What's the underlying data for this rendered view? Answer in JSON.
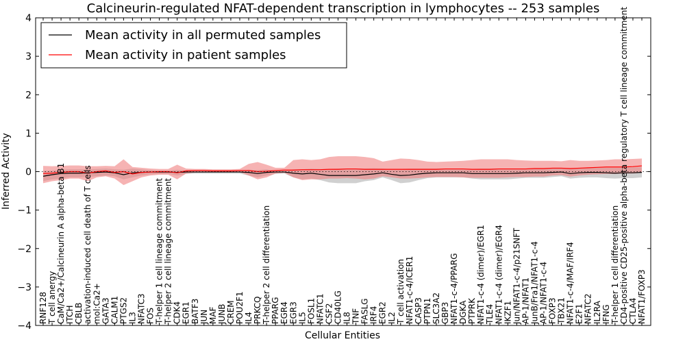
{
  "chart_data": {
    "type": "line",
    "title": "Calcineurin-regulated NFAT-dependent transcription in lymphocytes -- 253 samples",
    "xlabel": "Cellular Entities",
    "ylabel": "Inferred Activity",
    "ylim": [
      -4,
      4
    ],
    "yticks": [
      4,
      3,
      2,
      1,
      0,
      -1,
      -2,
      -3,
      -4
    ],
    "ytick_labels": [
      "4",
      "3",
      "2",
      "1",
      "0",
      "−1",
      "−2",
      "−3",
      "−4"
    ],
    "categories": [
      "RNF128",
      "T cell anergy",
      "CaM/Ca2+/Calcineurin A alpha-beta B1",
      "ITCH",
      "CBLB",
      "activation-induced cell death of T cells",
      "mol:Ca2+",
      "GATA3",
      "CALM1",
      "PTGS2",
      "IL3",
      "NFATC3",
      "FOS",
      "T-helper 1 cell lineage commitment",
      "T-helper 2 cell lineage commitment",
      "CDK4",
      "EGR1",
      "BATF3",
      "JUN",
      "MAF",
      "JUNB",
      "CREM",
      "POU2F1",
      "IL4",
      "PRKCQ",
      "T-helper 2 cell differentiation",
      "PPARG",
      "EGR4",
      "EGR3",
      "IL5",
      "FOSL1",
      "NFATC1",
      "CSF2",
      "CD40LG",
      "IL8",
      "TNF",
      "FASLG",
      "IRF4",
      "EGR2",
      "IL2",
      "T cell activation",
      "NFAT1-c-4/ICER1",
      "CASP3",
      "PTPN1",
      "SLC3A2",
      "GBP3",
      "NFAT1-c-4/PPARG",
      "DGKA",
      "PTPRK",
      "NFAT1-c-4 (dimer)/EGR1",
      "TLE4",
      "NFAT1-c-4 (dimer)/EGR4",
      "IKZF1",
      "Jun/NFAT1-c-4/p21SNFT",
      "AP-1/NFAT1",
      "JunB/Fra1/NFAT1-c-4",
      "AP-1/NFAT1-c-4",
      "FOXP3",
      "TBX21",
      "NFAT1-c-4/MAF/IRF4",
      "E2F1",
      "NFATC2",
      "IL2RA",
      "IFNG",
      "T-helper 1 cell differentiation",
      "CD4-positive CD25-positive alpha-beta regulatory T cell lineage commitment",
      "CTLA4",
      "NFAT1/FOXP3"
    ],
    "series": [
      {
        "name": "Mean activity in all permuted samples",
        "color": "#000000",
        "band_color": "#aaaaaa",
        "values": [
          -0.12,
          -0.08,
          -0.05,
          -0.04,
          -0.04,
          -0.03,
          -0.02,
          -0.01,
          -0.03,
          -0.08,
          -0.03,
          -0.02,
          -0.01,
          -0.01,
          -0.01,
          -0.02,
          -0.01,
          -0.01,
          -0.01,
          -0.01,
          -0.01,
          -0.01,
          -0.01,
          -0.02,
          -0.05,
          -0.02,
          -0.01,
          -0.01,
          -0.04,
          -0.06,
          -0.04,
          -0.07,
          -0.1,
          -0.1,
          -0.1,
          -0.1,
          -0.08,
          -0.06,
          -0.03,
          -0.07,
          -0.1,
          -0.09,
          -0.06,
          -0.04,
          -0.03,
          -0.03,
          -0.03,
          -0.03,
          -0.05,
          -0.05,
          -0.05,
          -0.05,
          -0.05,
          -0.04,
          -0.03,
          -0.03,
          -0.03,
          -0.02,
          -0.01,
          -0.05,
          -0.03,
          -0.02,
          -0.02,
          -0.03,
          -0.04,
          -0.03,
          -0.03,
          -0.02
        ],
        "lower": [
          -0.25,
          -0.2,
          -0.18,
          -0.15,
          -0.15,
          -0.14,
          -0.12,
          -0.1,
          -0.12,
          -0.2,
          -0.15,
          -0.1,
          -0.07,
          -0.06,
          -0.06,
          -0.1,
          -0.06,
          -0.05,
          -0.05,
          -0.05,
          -0.05,
          -0.05,
          -0.05,
          -0.1,
          -0.15,
          -0.1,
          -0.06,
          -0.05,
          -0.15,
          -0.2,
          -0.18,
          -0.22,
          -0.28,
          -0.3,
          -0.3,
          -0.3,
          -0.25,
          -0.22,
          -0.15,
          -0.22,
          -0.3,
          -0.28,
          -0.22,
          -0.17,
          -0.15,
          -0.15,
          -0.15,
          -0.15,
          -0.18,
          -0.2,
          -0.2,
          -0.2,
          -0.2,
          -0.18,
          -0.16,
          -0.16,
          -0.16,
          -0.14,
          -0.12,
          -0.18,
          -0.16,
          -0.15,
          -0.15,
          -0.17,
          -0.18,
          -0.17,
          -0.17,
          -0.15
        ],
        "upper": [
          0.02,
          0.03,
          0.05,
          0.06,
          0.06,
          0.06,
          0.07,
          0.08,
          0.06,
          0.05,
          0.08,
          0.06,
          0.04,
          0.03,
          0.03,
          0.05,
          0.03,
          0.02,
          0.02,
          0.02,
          0.02,
          0.02,
          0.02,
          0.05,
          0.04,
          0.06,
          0.03,
          0.02,
          0.06,
          0.06,
          0.08,
          0.07,
          0.07,
          0.08,
          0.08,
          0.08,
          0.08,
          0.09,
          0.08,
          0.06,
          0.07,
          0.08,
          0.08,
          0.08,
          0.08,
          0.08,
          0.08,
          0.07,
          0.07,
          0.08,
          0.08,
          0.08,
          0.08,
          0.08,
          0.08,
          0.09,
          0.09,
          0.1,
          0.1,
          0.08,
          0.09,
          0.1,
          0.1,
          0.1,
          0.1,
          0.1,
          0.11,
          0.12
        ]
      },
      {
        "name": "Mean activity in patient samples",
        "color": "#ff0000",
        "band_color": "#f08080",
        "values": [
          -0.05,
          -0.04,
          -0.02,
          0.0,
          0.0,
          -0.04,
          0.0,
          0.02,
          -0.02,
          0.0,
          -0.06,
          -0.02,
          -0.01,
          0.0,
          0.0,
          -0.03,
          0.02,
          0.03,
          0.03,
          0.02,
          0.02,
          0.02,
          0.03,
          0.03,
          0.0,
          0.01,
          0.03,
          0.04,
          0.04,
          0.05,
          0.05,
          0.05,
          0.06,
          0.06,
          0.07,
          0.07,
          0.06,
          0.06,
          0.06,
          0.06,
          0.06,
          0.06,
          0.06,
          0.06,
          0.06,
          0.07,
          0.07,
          0.07,
          0.06,
          0.06,
          0.06,
          0.07,
          0.07,
          0.07,
          0.07,
          0.08,
          0.08,
          0.09,
          0.09,
          0.08,
          0.09,
          0.1,
          0.11,
          0.12,
          0.12,
          0.12,
          0.13,
          0.15
        ],
        "lower": [
          -0.3,
          -0.25,
          -0.22,
          -0.18,
          -0.18,
          -0.25,
          -0.15,
          -0.12,
          -0.18,
          -0.35,
          -0.25,
          -0.15,
          -0.1,
          -0.08,
          -0.08,
          -0.2,
          -0.05,
          -0.02,
          -0.02,
          -0.02,
          -0.02,
          -0.02,
          -0.01,
          -0.1,
          -0.2,
          -0.15,
          -0.05,
          -0.03,
          -0.15,
          -0.22,
          -0.2,
          -0.2,
          -0.18,
          -0.18,
          -0.17,
          -0.18,
          -0.2,
          -0.18,
          -0.12,
          -0.15,
          -0.18,
          -0.18,
          -0.17,
          -0.15,
          -0.14,
          -0.14,
          -0.14,
          -0.15,
          -0.16,
          -0.16,
          -0.16,
          -0.16,
          -0.15,
          -0.14,
          -0.14,
          -0.13,
          -0.13,
          -0.1,
          -0.09,
          -0.13,
          -0.1,
          -0.08,
          -0.07,
          -0.06,
          -0.06,
          -0.05,
          -0.05,
          -0.03
        ],
        "upper": [
          0.15,
          0.14,
          0.15,
          0.16,
          0.16,
          0.14,
          0.14,
          0.15,
          0.14,
          0.32,
          0.12,
          0.1,
          0.08,
          0.07,
          0.07,
          0.18,
          0.08,
          0.07,
          0.07,
          0.06,
          0.06,
          0.06,
          0.07,
          0.2,
          0.25,
          0.18,
          0.1,
          0.1,
          0.3,
          0.32,
          0.3,
          0.32,
          0.38,
          0.4,
          0.4,
          0.4,
          0.38,
          0.35,
          0.26,
          0.3,
          0.34,
          0.33,
          0.3,
          0.26,
          0.25,
          0.26,
          0.27,
          0.28,
          0.3,
          0.32,
          0.32,
          0.32,
          0.32,
          0.3,
          0.29,
          0.28,
          0.28,
          0.28,
          0.27,
          0.3,
          0.28,
          0.28,
          0.29,
          0.3,
          0.32,
          0.32,
          0.33,
          0.34
        ]
      }
    ],
    "legend_location": "top-left"
  }
}
